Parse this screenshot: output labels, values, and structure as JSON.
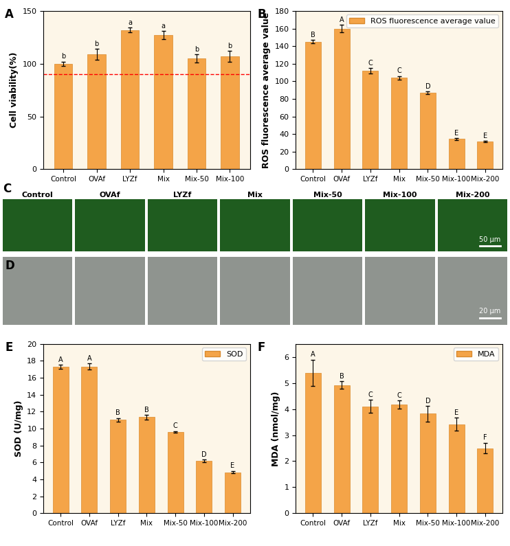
{
  "chart_data": [
    {
      "panel": "A",
      "type": "bar",
      "categories": [
        "Control",
        "OVAf",
        "LYZf",
        "Mix",
        "Mix-50",
        "Mix-100"
      ],
      "values": [
        100,
        109,
        132,
        127,
        105,
        107
      ],
      "errors": [
        2,
        5,
        2,
        4,
        4,
        5
      ],
      "significance": [
        "b",
        "b",
        "a",
        "a",
        "b",
        "b"
      ],
      "y_label": "Cell viability(%)",
      "color": "#f4a448",
      "reference_line": 90,
      "ylim": [
        0,
        150
      ],
      "yticks": [
        0,
        50,
        100,
        150
      ]
    },
    {
      "panel": "B",
      "type": "bar",
      "categories": [
        "Control",
        "OVAf",
        "LYZf",
        "Mix",
        "Mix-50",
        "Mix-100",
        "Mix-200"
      ],
      "series": [
        {
          "name": "ROS fluorescence average value",
          "color": "#f4a448",
          "values": [
            145,
            160,
            112,
            104,
            87,
            34.5,
            31.5
          ],
          "errors": [
            2,
            4,
            3,
            2,
            1.5,
            1,
            0.8
          ],
          "significance": [
            "B",
            "A",
            "C",
            "C",
            "D",
            "E",
            "E"
          ]
        }
      ],
      "y_label": "ROS fluorescence average value",
      "legend": "upper right",
      "ylim": [
        0,
        180
      ],
      "yticks": [
        0,
        20,
        40,
        60,
        80,
        100,
        120,
        140,
        160,
        180
      ]
    },
    {
      "panel": "E",
      "type": "bar",
      "categories": [
        "Control",
        "OVAf",
        "LYZf",
        "Mix",
        "Mix-50",
        "Mix-100",
        "Mix-200"
      ],
      "series": [
        {
          "name": "SOD",
          "color": "#f4a448",
          "values": [
            17.3,
            17.35,
            11.05,
            11.35,
            9.6,
            6.2,
            4.85
          ],
          "errors": [
            0.25,
            0.35,
            0.2,
            0.25,
            0.1,
            0.15,
            0.15
          ],
          "significance": [
            "A",
            "A",
            "B",
            "B",
            "C",
            "D",
            "E"
          ]
        }
      ],
      "y_label": "SOD (U/mg)",
      "legend": "upper right",
      "ylim": [
        0,
        20
      ],
      "yticks": [
        0,
        2,
        4,
        6,
        8,
        10,
        12,
        14,
        16,
        18,
        20
      ]
    },
    {
      "panel": "F",
      "type": "bar",
      "categories": [
        "Control",
        "OVAf",
        "LYZf",
        "Mix",
        "Mix-50",
        "Mix-100",
        "Mix-200"
      ],
      "series": [
        {
          "name": "MDA",
          "color": "#f4a448",
          "values": [
            5.4,
            4.92,
            4.1,
            4.18,
            3.82,
            3.42,
            2.5
          ],
          "errors": [
            0.5,
            0.15,
            0.25,
            0.15,
            0.3,
            0.25,
            0.2
          ],
          "significance": [
            "A",
            "B",
            "C",
            "C",
            "D",
            "E",
            "F"
          ]
        }
      ],
      "y_label": "MDA (nmol/mg)",
      "legend": "upper right",
      "ylim": [
        0,
        6.5
      ],
      "yticks": [
        0,
        1,
        2,
        3,
        4,
        5,
        6
      ]
    }
  ],
  "images": [
    {
      "panel": "C",
      "labels": [
        "Control",
        "OVAf",
        "LYZf",
        "Mix",
        "Mix-50",
        "Mix-100",
        "Mix-200"
      ],
      "scale_bar": "50 μm"
    },
    {
      "panel": "D",
      "scale_bar": "20 μm"
    }
  ]
}
